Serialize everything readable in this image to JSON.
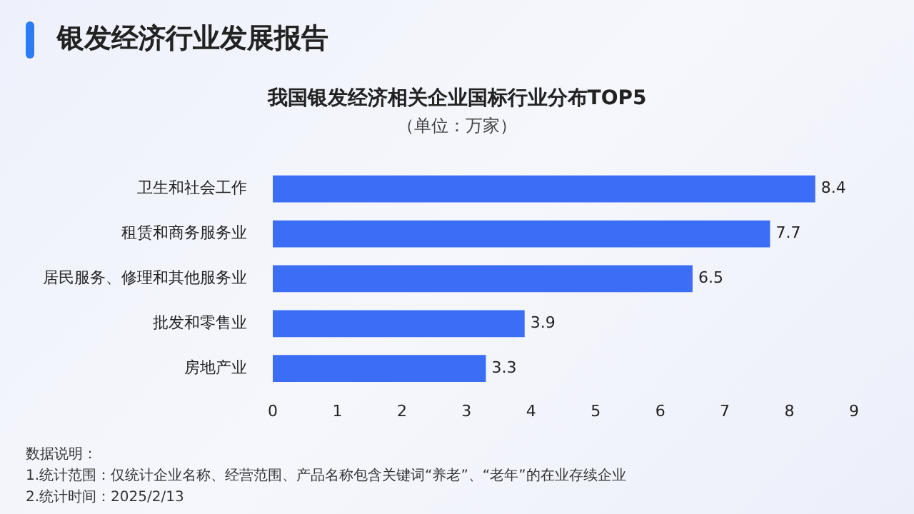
{
  "chart_data": {
    "type": "bar",
    "orientation": "horizontal",
    "title": "我国银发经济相关企业国标行业分布TOP5",
    "subtitle": "（单位：万家）",
    "categories": [
      "卫生和社会工作",
      "租赁和商务服务业",
      "居民服务、修理和其他服务业",
      "批发和零售业",
      "房地产业"
    ],
    "values": [
      8.4,
      7.7,
      6.5,
      3.9,
      3.3
    ],
    "color": "#3b6ef5",
    "data_labels": true,
    "xlim": [
      0,
      9
    ],
    "xticks": [
      0,
      1,
      2,
      3,
      4,
      5,
      6,
      7,
      8,
      9
    ],
    "grid": false,
    "legend": false,
    "annotations": [
      "银发经济行业发展报告",
      "数据说明：",
      "1.统计范围：仅统计企业名称、经营范围、产品名称包含关键词“养老”、“老年”的在业存续企业",
      "2.统计时间：2025/2/13"
    ]
  }
}
